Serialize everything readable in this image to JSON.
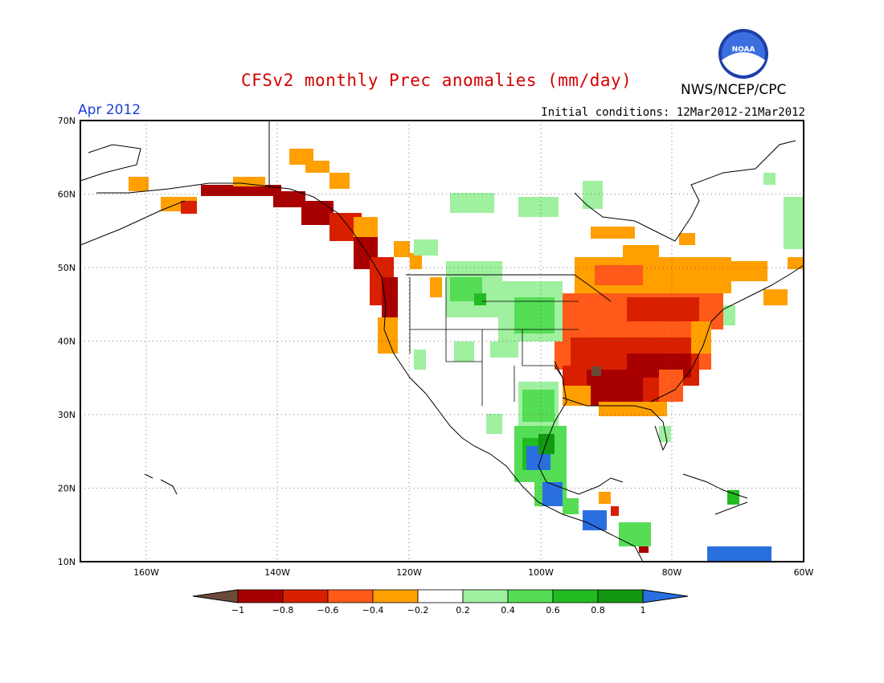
{
  "header": {
    "title": "CFSv2 monthly Prec anomalies (mm/day)",
    "agency": "NWS/NCEP/CPC",
    "logo_text": "NOAA",
    "month": "Apr 2012",
    "initial_conditions": "Initial conditions: 12Mar2012-21Mar2012"
  },
  "map": {
    "lat_labels": [
      "70N",
      "60N",
      "50N",
      "40N",
      "30N",
      "20N",
      "10N"
    ],
    "lon_labels": [
      "160W",
      "140W",
      "120W",
      "100W",
      "80W",
      "60W"
    ],
    "lon_range": [
      -170,
      -60
    ],
    "lat_range": [
      10,
      70
    ]
  },
  "legend": {
    "tick_labels": [
      "-1",
      "-0.8",
      "-0.6",
      "-0.4",
      "-0.2",
      "0.2",
      "0.4",
      "0.6",
      "0.8",
      "1"
    ],
    "colors": [
      "#6b4a3a",
      "#a80000",
      "#d82000",
      "#ff5a1a",
      "#ff9f00",
      "#ffffff",
      "#9ff09f",
      "#55dd55",
      "#22bb22",
      "#119911",
      "#2a6fe0"
    ],
    "units": "mm/day"
  },
  "colors": {
    "dry_strong": "#a80000",
    "dry": "#d82000",
    "dry_light": "#ff9f00",
    "wet_light": "#9ff09f",
    "wet": "#55dd55",
    "wet_strong": "#22bb22",
    "very_wet": "#2a6fe0"
  }
}
